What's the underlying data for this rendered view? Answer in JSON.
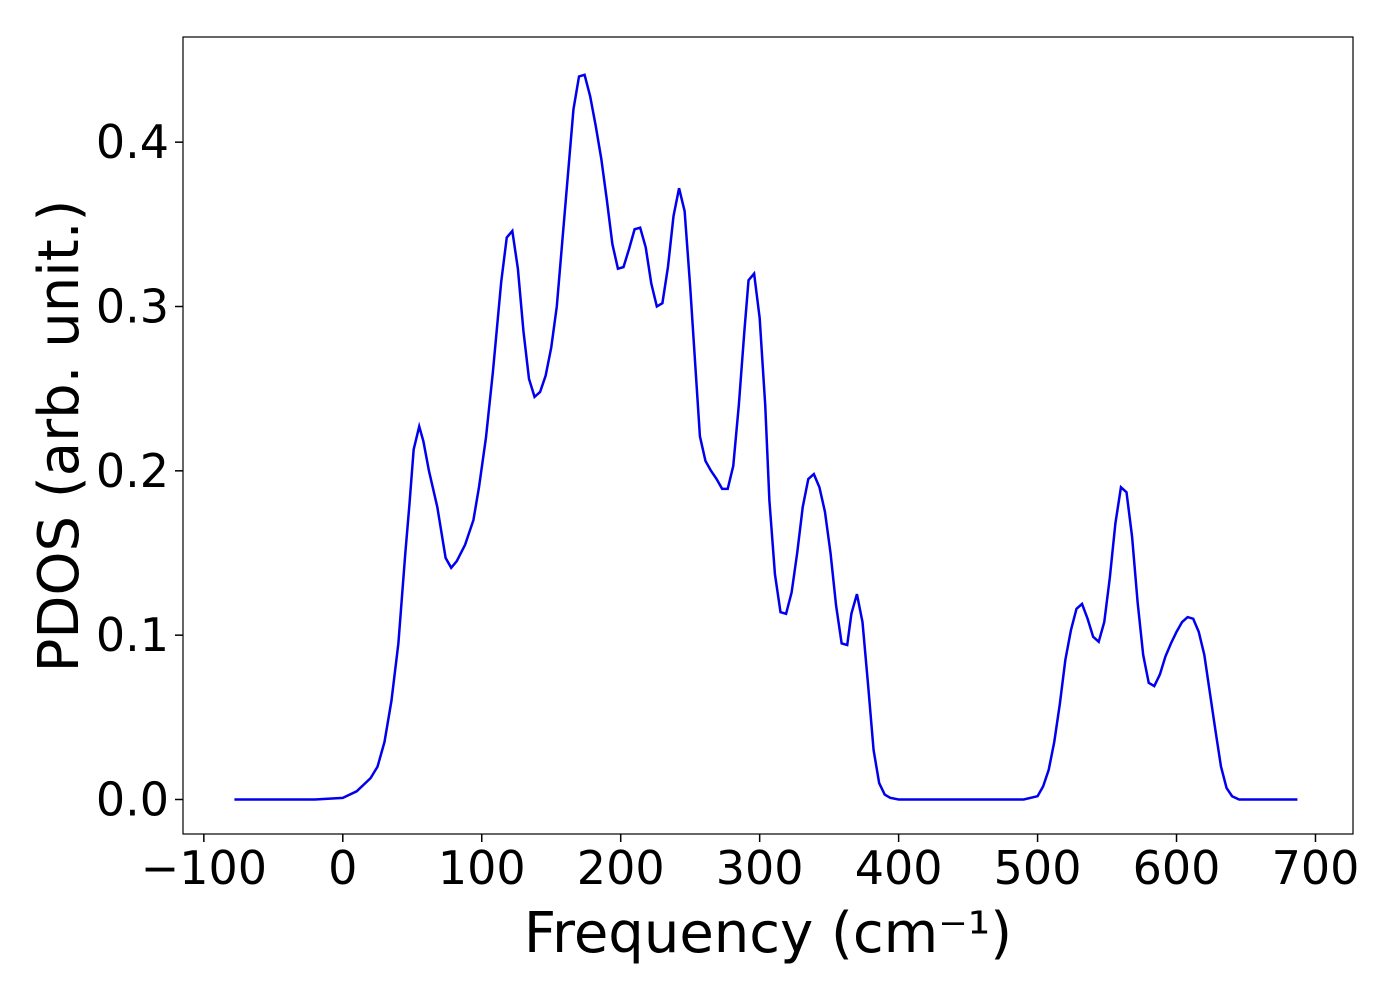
{
  "chart_data": {
    "type": "line",
    "xlabel": "Frequency (cm⁻¹)",
    "ylabel": "PDOS (arb. unit.)",
    "xlim": [
      -115,
      727
    ],
    "ylim": [
      -0.021,
      0.464
    ],
    "xticks": [
      {
        "value": -100,
        "label": "−100"
      },
      0,
      100,
      200,
      300,
      400,
      500,
      600,
      700
    ],
    "yticks": [
      {
        "value": 0,
        "label": "0.0"
      },
      0.1,
      0.2,
      0.3,
      0.4
    ],
    "grid": false,
    "x": [
      -78,
      -20,
      0,
      10,
      20,
      25,
      30,
      35,
      40,
      45,
      48,
      51,
      55,
      58,
      62,
      68,
      74,
      78,
      82,
      88,
      94,
      98,
      103,
      108,
      114,
      118,
      122,
      126,
      130,
      134,
      138,
      142,
      146,
      150,
      154,
      158,
      162,
      166,
      170,
      174,
      178,
      182,
      186,
      190,
      194,
      198,
      202,
      206,
      210,
      214,
      218,
      222,
      226,
      230,
      234,
      238,
      242,
      246,
      250,
      254,
      257,
      261,
      265,
      269,
      273,
      277,
      281,
      285,
      289,
      292,
      296,
      300,
      304,
      307,
      311,
      315,
      319,
      323,
      327,
      331,
      335,
      339,
      343,
      347,
      351,
      355,
      359,
      363,
      366,
      370,
      374,
      378,
      382,
      386,
      390,
      394,
      400,
      490,
      500,
      504,
      508,
      512,
      516,
      520,
      524,
      528,
      532,
      536,
      540,
      544,
      548,
      552,
      556,
      560,
      564,
      568,
      572,
      576,
      580,
      584,
      588,
      592,
      596,
      600,
      604,
      608,
      612,
      616,
      620,
      624,
      628,
      632,
      636,
      640,
      645,
      687
    ],
    "series": [
      {
        "name": "PDOS",
        "color": "#0000ee",
        "values": [
          0,
          0,
          0.001,
          0.005,
          0.013,
          0.02,
          0.035,
          0.06,
          0.095,
          0.15,
          0.18,
          0.213,
          0.227,
          0.218,
          0.2,
          0.178,
          0.147,
          0.141,
          0.145,
          0.155,
          0.17,
          0.19,
          0.22,
          0.26,
          0.315,
          0.342,
          0.346,
          0.323,
          0.285,
          0.256,
          0.245,
          0.248,
          0.258,
          0.275,
          0.3,
          0.34,
          0.38,
          0.42,
          0.44,
          0.441,
          0.428,
          0.41,
          0.39,
          0.365,
          0.338,
          0.323,
          0.324,
          0.335,
          0.347,
          0.348,
          0.336,
          0.314,
          0.3,
          0.302,
          0.324,
          0.355,
          0.372,
          0.358,
          0.312,
          0.26,
          0.221,
          0.206,
          0.2,
          0.195,
          0.189,
          0.189,
          0.203,
          0.24,
          0.285,
          0.316,
          0.32,
          0.293,
          0.24,
          0.182,
          0.137,
          0.114,
          0.113,
          0.126,
          0.15,
          0.178,
          0.195,
          0.198,
          0.19,
          0.175,
          0.15,
          0.118,
          0.095,
          0.094,
          0.113,
          0.125,
          0.108,
          0.07,
          0.03,
          0.01,
          0.003,
          0.001,
          0,
          0,
          0.002,
          0.008,
          0.018,
          0.035,
          0.058,
          0.085,
          0.103,
          0.116,
          0.119,
          0.11,
          0.099,
          0.096,
          0.108,
          0.135,
          0.168,
          0.19,
          0.187,
          0.16,
          0.12,
          0.088,
          0.071,
          0.069,
          0.076,
          0.087,
          0.095,
          0.102,
          0.108,
          0.111,
          0.11,
          0.102,
          0.088,
          0.065,
          0.042,
          0.02,
          0.007,
          0.002,
          0,
          0
        ]
      }
    ]
  }
}
